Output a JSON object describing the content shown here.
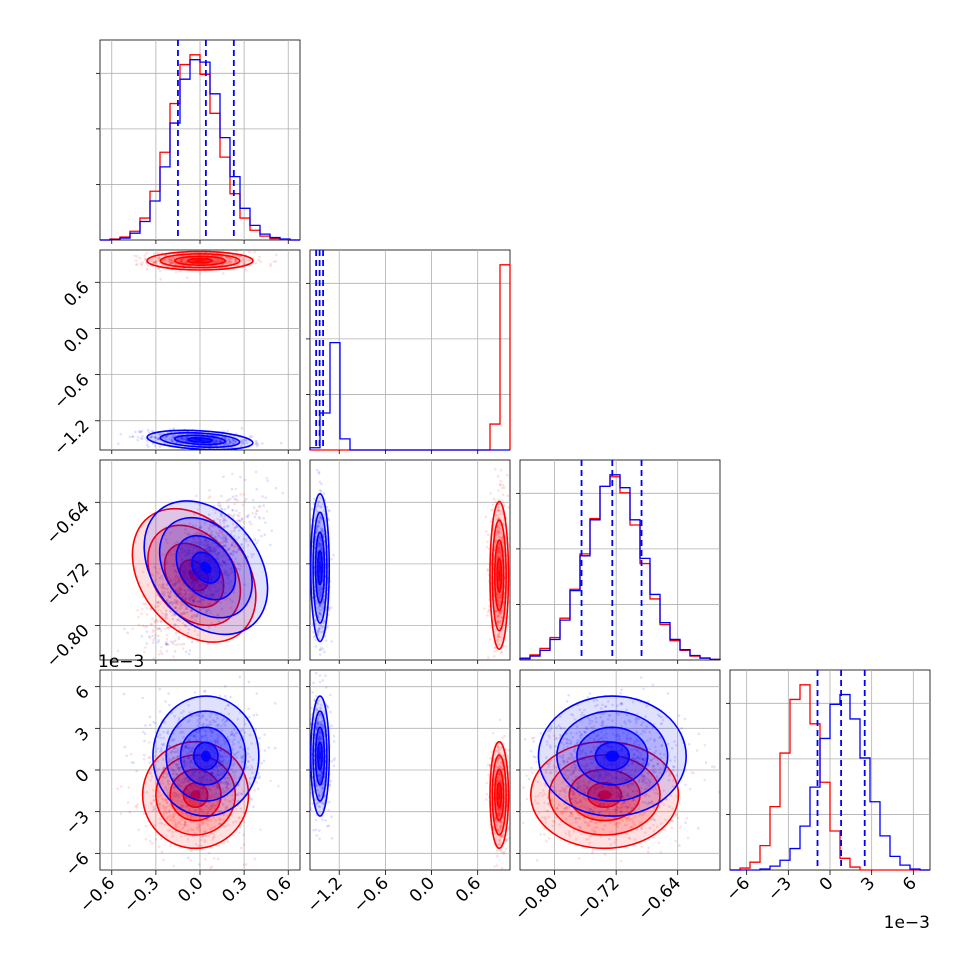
{
  "chart_data": {
    "type": "corner",
    "title": "",
    "parameters": [
      "",
      "",
      "",
      ""
    ],
    "grid": true,
    "series": [
      {
        "color": "#ff0000"
      },
      {
        "color": "#0000ff"
      }
    ],
    "quantile_line_color": "#0000ff",
    "axes": {
      "p0": {
        "range": [
          -0.68,
          0.68
        ],
        "ticks": [
          -0.6,
          -0.3,
          0.0,
          0.3,
          0.6
        ],
        "tick_labels": [
          "−0.6",
          "−0.3",
          "0.0",
          "0.3",
          "0.6"
        ]
      },
      "p1": {
        "range": [
          -1.58,
          1.02
        ],
        "ticks": [
          -1.2,
          -0.6,
          0.0,
          0.6
        ],
        "tick_labels": [
          "−1.2",
          "−0.6",
          "0.0",
          "0.6"
        ]
      },
      "p2": {
        "range": [
          -0.845,
          -0.585
        ],
        "ticks": [
          -0.8,
          -0.72,
          -0.64
        ],
        "tick_labels": [
          "−0.80",
          "−0.72",
          "−0.64"
        ]
      },
      "p3": {
        "range": [
          -0.0072,
          0.0072
        ],
        "ticks": [
          -0.006,
          -0.003,
          0.0,
          0.003,
          0.006
        ],
        "tick_labels": [
          "−6",
          "−3",
          "0",
          "3",
          "6"
        ],
        "exponent_label": "1e−3"
      }
    },
    "marginals": {
      "p0": {
        "bins": [
          -0.68,
          -0.612,
          -0.544,
          -0.476,
          -0.408,
          -0.34,
          -0.272,
          -0.204,
          -0.136,
          -0.068,
          0.0,
          0.068,
          0.136,
          0.204,
          0.272,
          0.34,
          0.408,
          0.476,
          0.544,
          0.612,
          0.68
        ],
        "red": [
          0,
          2,
          6,
          18,
          45,
          100,
          180,
          280,
          360,
          380,
          340,
          260,
          170,
          95,
          45,
          20,
          8,
          3,
          1,
          0
        ],
        "blue": [
          0,
          1,
          4,
          14,
          38,
          80,
          150,
          240,
          330,
          370,
          365,
          300,
          210,
          130,
          65,
          30,
          12,
          5,
          2,
          0
        ],
        "quantiles": [
          -0.15,
          0.04,
          0.23
        ]
      },
      "p1": {
        "bins": [
          -1.58,
          -1.45,
          -1.32,
          -1.19,
          -1.06,
          -0.93,
          -0.8,
          -0.67,
          -0.54,
          -0.41,
          -0.28,
          -0.15,
          -0.02,
          0.11,
          0.24,
          0.37,
          0.5,
          0.63,
          0.76,
          0.89,
          1.02
        ],
        "red": [
          0,
          0,
          0,
          0,
          0,
          0,
          0,
          0,
          0,
          0,
          0,
          0,
          0,
          0,
          0,
          0,
          0,
          0,
          35,
          250
        ],
        "blue": [
          3,
          50,
          145,
          15,
          0,
          0,
          0,
          0,
          0,
          0,
          0,
          0,
          0,
          0,
          0,
          0,
          0,
          0,
          0,
          0
        ],
        "quantiles": [
          -1.5,
          -1.455,
          -1.41
        ]
      },
      "p2": {
        "bins": [
          -0.845,
          -0.832,
          -0.819,
          -0.806,
          -0.793,
          -0.78,
          -0.767,
          -0.754,
          -0.741,
          -0.728,
          -0.715,
          -0.702,
          -0.689,
          -0.676,
          -0.663,
          -0.65,
          -0.637,
          -0.624,
          -0.611,
          -0.598,
          -0.585
        ],
        "red": [
          3,
          8,
          18,
          35,
          65,
          110,
          165,
          220,
          270,
          285,
          260,
          210,
          150,
          95,
          55,
          30,
          15,
          6,
          3,
          1
        ],
        "blue": [
          2,
          6,
          15,
          32,
          62,
          108,
          162,
          218,
          270,
          288,
          268,
          218,
          158,
          102,
          58,
          32,
          16,
          7,
          3,
          1
        ],
        "quantiles": [
          -0.765,
          -0.725,
          -0.687
        ]
      },
      "p3": {
        "bins": [
          -0.0072,
          -0.00648,
          -0.00576,
          -0.00504,
          -0.00432,
          -0.0036,
          -0.00288,
          -0.00216,
          -0.00144,
          -0.00072,
          0.0,
          0.00072,
          0.00144,
          0.00216,
          0.00288,
          0.0036,
          0.00432,
          0.00504,
          0.00576,
          0.00648,
          0.0072
        ],
        "red": [
          0,
          2,
          8,
          25,
          65,
          120,
          175,
          190,
          150,
          90,
          40,
          12,
          3,
          0,
          0,
          0,
          0,
          0,
          0,
          0
        ],
        "blue": [
          0,
          0,
          0,
          1,
          4,
          10,
          22,
          45,
          85,
          135,
          170,
          180,
          155,
          115,
          70,
          35,
          14,
          5,
          1,
          0
        ],
        "quantiles": [
          -0.0009,
          0.0008,
          0.0025
        ]
      }
    },
    "pairs": {
      "p1_p0": {
        "red": {
          "mean": [
            0.0,
            0.88
          ],
          "sd": [
            0.15,
            0.05
          ],
          "rho": 0.0
        },
        "blue": {
          "mean": [
            0.0,
            -1.45
          ],
          "sd": [
            0.15,
            0.05
          ],
          "rho": -0.35
        }
      },
      "p2_p0": {
        "red": {
          "mean": [
            -0.04,
            -0.735
          ],
          "sd": [
            0.15,
            0.04
          ],
          "rho": 0.65
        },
        "blue": {
          "mean": [
            0.04,
            -0.725
          ],
          "sd": [
            0.15,
            0.04
          ],
          "rho": 0.65
        }
      },
      "p2_p1": {
        "red": {
          "mean": [
            0.88,
            -0.735
          ],
          "sd": [
            0.05,
            0.04
          ],
          "rho": 0.0
        },
        "blue": {
          "mean": [
            -1.45,
            -0.725
          ],
          "sd": [
            0.05,
            0.04
          ],
          "rho": 0.0
        }
      },
      "p3_p0": {
        "red": {
          "mean": [
            -0.03,
            -0.0018
          ],
          "sd": [
            0.15,
            0.0016
          ],
          "rho": 0.0
        },
        "blue": {
          "mean": [
            0.04,
            0.001
          ],
          "sd": [
            0.15,
            0.0018
          ],
          "rho": 0.0
        }
      },
      "p3_p1": {
        "red": {
          "mean": [
            0.88,
            -0.0018
          ],
          "sd": [
            0.05,
            0.0016
          ],
          "rho": 0.0
        },
        "blue": {
          "mean": [
            -1.45,
            0.001
          ],
          "sd": [
            0.05,
            0.0018
          ],
          "rho": 0.0
        }
      },
      "p3_p2": {
        "red": {
          "mean": [
            -0.735,
            -0.0018
          ],
          "sd": [
            0.04,
            0.0016
          ],
          "rho": 0.0
        },
        "blue": {
          "mean": [
            -0.725,
            0.001
          ],
          "sd": [
            0.04,
            0.0018
          ],
          "rho": 0.0
        }
      }
    }
  }
}
